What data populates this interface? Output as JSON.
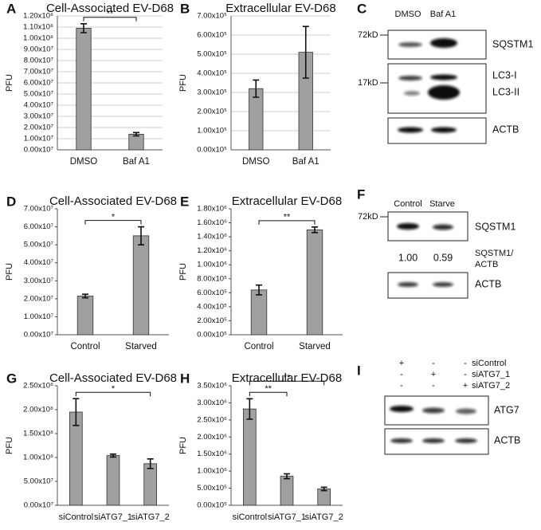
{
  "chart_data": [
    {
      "type": "bar",
      "panel": "A",
      "title": "Cell-Associated EV-D68",
      "ylabel": "PFU",
      "categories": [
        "DMSO",
        "Baf A1"
      ],
      "values": [
        109000000,
        14000000
      ],
      "errors": [
        4000000,
        1500000
      ],
      "color": "#a0a0a0",
      "grid": true,
      "ylim": [
        0,
        120000000
      ],
      "yticks": [
        {
          "value": 0,
          "label": "0.00x10⁷"
        },
        {
          "value": 10000000,
          "label": "1.00x10⁷"
        },
        {
          "value": 20000000,
          "label": "2.00x10⁷"
        },
        {
          "value": 30000000,
          "label": "3.00x10⁷"
        },
        {
          "value": 40000000,
          "label": "4.00x10⁷"
        },
        {
          "value": 50000000,
          "label": "5.00x10⁷"
        },
        {
          "value": 60000000,
          "label": "6.00x10⁷"
        },
        {
          "value": 70000000,
          "label": "7.00x10⁷"
        },
        {
          "value": 80000000,
          "label": "8.00x10⁷"
        },
        {
          "value": 90000000,
          "label": "9.00x10⁷"
        },
        {
          "value": 100000000,
          "label": "1.00x10⁸"
        },
        {
          "value": 110000000,
          "label": "1.10x10⁸"
        },
        {
          "value": 120000000,
          "label": "1.20x10⁸"
        }
      ],
      "annotations": [
        {
          "text": "**",
          "between": [
            "DMSO",
            "Baf A1"
          ]
        }
      ]
    },
    {
      "type": "bar",
      "panel": "B",
      "title": "Extracellular EV-D68",
      "ylabel": "PFU",
      "categories": [
        "DMSO",
        "Baf A1"
      ],
      "values": [
        320000,
        510000
      ],
      "errors": [
        45000,
        135000
      ],
      "color": "#a0a0a0",
      "grid": true,
      "ylim": [
        0,
        700000
      ],
      "yticks": [
        {
          "value": 0,
          "label": "0.00x10⁵"
        },
        {
          "value": 100000,
          "label": "1.00x10⁵"
        },
        {
          "value": 200000,
          "label": "2.00x10⁵"
        },
        {
          "value": 300000,
          "label": "3.00x10⁵"
        },
        {
          "value": 400000,
          "label": "4.00x10⁵"
        },
        {
          "value": 500000,
          "label": "5.00x10⁵"
        },
        {
          "value": 600000,
          "label": "6.00x10⁵"
        },
        {
          "value": 700000,
          "label": "7.00x10⁵"
        }
      ],
      "annotations": []
    },
    {
      "type": "bar",
      "panel": "D",
      "title": "Cell-Associated EV-D68",
      "ylabel": "PFU",
      "categories": [
        "Control",
        "Starved"
      ],
      "values": [
        21500000,
        55000000
      ],
      "errors": [
        1000000,
        5000000
      ],
      "color": "#a0a0a0",
      "grid": false,
      "ylim": [
        0,
        70000000
      ],
      "yticks": [
        {
          "value": 0,
          "label": "0.00x10⁷"
        },
        {
          "value": 10000000,
          "label": "1.00x10⁷"
        },
        {
          "value": 20000000,
          "label": "2.00x10⁷"
        },
        {
          "value": 30000000,
          "label": "3.00x10⁷"
        },
        {
          "value": 40000000,
          "label": "4.00x10⁷"
        },
        {
          "value": 50000000,
          "label": "5.00x10⁷"
        },
        {
          "value": 60000000,
          "label": "6.00x10⁷"
        },
        {
          "value": 70000000,
          "label": "7.00x10⁷"
        }
      ],
      "annotations": [
        {
          "text": "*",
          "between": [
            "Control",
            "Starved"
          ]
        }
      ]
    },
    {
      "type": "bar",
      "panel": "E",
      "title": "Extracellular EV-D68",
      "ylabel": "PFU",
      "categories": [
        "Control",
        "Starved"
      ],
      "values": [
        640000,
        1500000
      ],
      "errors": [
        70000,
        40000
      ],
      "color": "#a0a0a0",
      "grid": false,
      "ylim": [
        0,
        1800000
      ],
      "yticks": [
        {
          "value": 0,
          "label": "0.00x10⁵"
        },
        {
          "value": 200000,
          "label": "2.00x10⁵"
        },
        {
          "value": 400000,
          "label": "4.00x10⁵"
        },
        {
          "value": 600000,
          "label": "6.00x10⁵"
        },
        {
          "value": 800000,
          "label": "8.00x10⁵"
        },
        {
          "value": 1000000,
          "label": "1.00x10⁶"
        },
        {
          "value": 1200000,
          "label": "1.20x10⁶"
        },
        {
          "value": 1400000,
          "label": "1.40x10⁶"
        },
        {
          "value": 1600000,
          "label": "1.60x10⁶"
        },
        {
          "value": 1800000,
          "label": "1.80x10⁶"
        }
      ],
      "annotations": [
        {
          "text": "**",
          "between": [
            "Control",
            "Starved"
          ]
        }
      ]
    },
    {
      "type": "bar",
      "panel": "G",
      "title": "Cell-Associated EV-D68",
      "ylabel": "PFU",
      "categories": [
        "siControl",
        "siATG7_1",
        "siATG7_2"
      ],
      "values": [
        195000000,
        104000000,
        87000000
      ],
      "errors": [
        28000000,
        3000000,
        10000000
      ],
      "color": "#a0a0a0",
      "grid": false,
      "ylim": [
        0,
        250000000
      ],
      "yticks": [
        {
          "value": 0,
          "label": "0.00x10⁷"
        },
        {
          "value": 50000000,
          "label": "5.00x10⁷"
        },
        {
          "value": 100000000,
          "label": "1.00x10⁸"
        },
        {
          "value": 150000000,
          "label": "1.50x10⁸"
        },
        {
          "value": 200000000,
          "label": "2.00x10⁸"
        },
        {
          "value": 250000000,
          "label": "2.50x10⁸"
        }
      ],
      "annotations": [
        {
          "text": "*",
          "between": [
            "siControl",
            "siATG7_2"
          ]
        }
      ]
    },
    {
      "type": "bar",
      "panel": "H",
      "title": "Extracellular EV-D68",
      "ylabel": "PFU",
      "categories": [
        "siControl",
        "siATG7_1",
        "siATG7_2"
      ],
      "values": [
        2820000,
        850000,
        480000
      ],
      "errors": [
        300000,
        70000,
        50000
      ],
      "color": "#a0a0a0",
      "grid": false,
      "ylim": [
        0,
        3500000
      ],
      "yticks": [
        {
          "value": 0,
          "label": "0.00x10⁵"
        },
        {
          "value": 500000,
          "label": "5.00x10⁵"
        },
        {
          "value": 1000000,
          "label": "1.00x10⁶"
        },
        {
          "value": 1500000,
          "label": "1.50x10⁶"
        },
        {
          "value": 2000000,
          "label": "2.00x10⁶"
        },
        {
          "value": 2500000,
          "label": "2.50x10⁶"
        },
        {
          "value": 3000000,
          "label": "3.00x10⁶"
        },
        {
          "value": 3500000,
          "label": "3.50x10⁶"
        }
      ],
      "annotations": [
        {
          "text": "**",
          "between": [
            "siControl",
            "siATG7_1"
          ]
        },
        {
          "text": "**",
          "between": [
            "siControl",
            "siATG7_2"
          ]
        }
      ]
    }
  ],
  "blots": [
    {
      "panel": "C",
      "lanes": [
        "DMSO",
        "Baf A1"
      ],
      "markers": [
        "72kD",
        "17kD"
      ],
      "bands": [
        "SQSTM1",
        "LC3-I",
        "LC3-II",
        "ACTB"
      ]
    },
    {
      "panel": "F",
      "lanes": [
        "Control",
        "Starve"
      ],
      "markers": [
        "72kD"
      ],
      "bands": [
        "SQSTM1",
        "ACTB"
      ],
      "quantification": {
        "values": [
          "1.00",
          "0.59"
        ],
        "label": [
          "SQSTM1/",
          "ACTB"
        ]
      }
    },
    {
      "panel": "I",
      "conditions": [
        {
          "name": "siControl",
          "signs": [
            "+",
            "-",
            "-"
          ]
        },
        {
          "name": "siATG7_1",
          "signs": [
            "-",
            "+",
            "-"
          ]
        },
        {
          "name": "siATG7_2",
          "signs": [
            "-",
            "-",
            "+"
          ]
        }
      ],
      "bands": [
        "ATG7",
        "ACTB"
      ]
    }
  ]
}
